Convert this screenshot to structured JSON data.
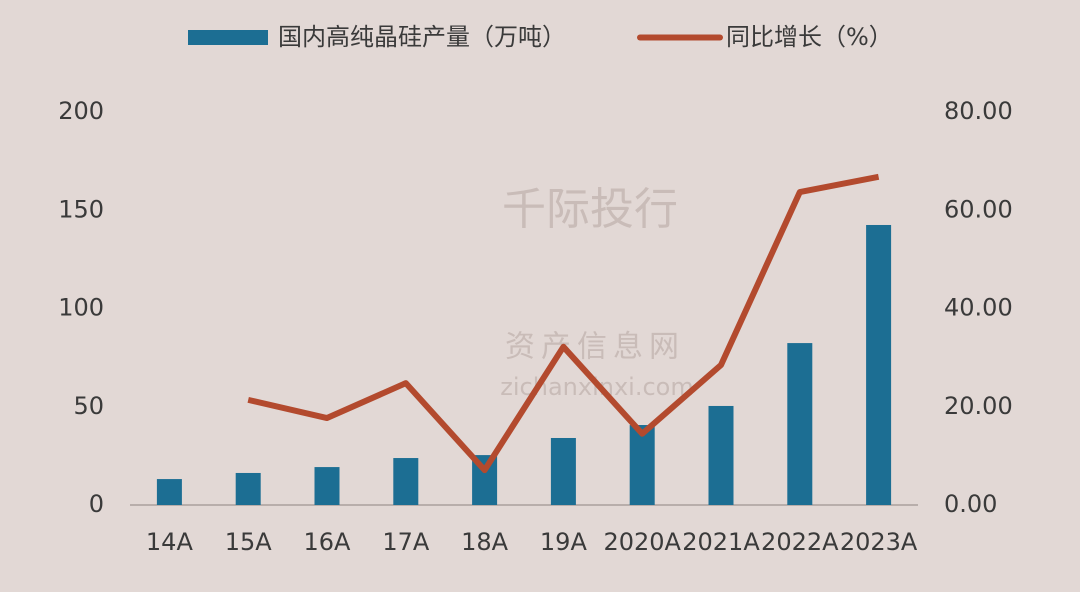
{
  "chart_data": {
    "type": "bar_line",
    "categories": [
      "14A",
      "15A",
      "16A",
      "17A",
      "18A",
      "19A",
      "2020A",
      "2021A",
      "2022A",
      "2023A"
    ],
    "series": [
      {
        "name": "国内高纯晶硅产量（万吨）",
        "color": "#1c6e93",
        "type": "bar",
        "values": [
          13.2,
          16.3,
          19.3,
          23.9,
          25.4,
          34.1,
          40.7,
          50.4,
          82.4,
          142.5
        ]
      },
      {
        "name": "同比增长（%）",
        "color": "#b34a2e",
        "type": "line",
        "axis": "y2",
        "values": [
          null,
          21.4,
          17.7,
          24.8,
          7.1,
          32.2,
          14.5,
          28.5,
          63.7,
          66.8
        ]
      }
    ],
    "ylim": [
      0,
      200
    ],
    "yticks": [
      0,
      50,
      100,
      150,
      200
    ],
    "y2lim": [
      0,
      80
    ],
    "y2ticks": [
      {
        "value": 0,
        "label": "0.00"
      },
      {
        "value": 20,
        "label": "20.00"
      },
      {
        "value": 40,
        "label": "40.00"
      },
      {
        "value": 60,
        "label": "60.00"
      },
      {
        "value": 80,
        "label": "80.00"
      }
    ],
    "legend": "top",
    "watermarks": [
      "千际投行",
      "资产信息网",
      "zichanxinxi.com"
    ]
  }
}
